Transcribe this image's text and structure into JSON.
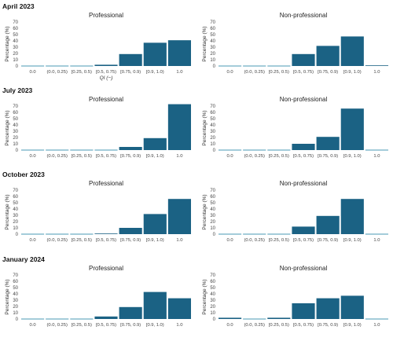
{
  "colors": {
    "bar": "#1b6284",
    "zero_line": "#4a9ab5",
    "axis_text": "#444444",
    "grid": "#ececec"
  },
  "chart_data": {
    "type": "bar",
    "categories": [
      "0.0",
      "(0.0, 0.25)",
      "[0.25, 0.5)",
      "[0.5, 0.75)",
      "[0.75, 0.9)",
      "[0.9, 1.0)",
      "1.0"
    ],
    "xlabel": "QI (−)",
    "ylabel": "Percentage (%)",
    "ylim": [
      0,
      70
    ],
    "yticks": [
      0,
      10,
      20,
      30,
      40,
      50,
      60,
      70
    ],
    "grid": false,
    "rows": [
      {
        "period": "April 2023",
        "panels": [
          {
            "title": "Professional",
            "values": [
              0,
              0,
              0,
              2,
              19,
              37,
              41
            ]
          },
          {
            "title": "Non-professional",
            "values": [
              0,
              0,
              0,
              19,
              32,
              47,
              1
            ]
          }
        ]
      },
      {
        "period": "July 2023",
        "panels": [
          {
            "title": "Professional",
            "values": [
              0,
              0,
              0,
              0,
              5,
              19,
              73
            ]
          },
          {
            "title": "Non-professional",
            "values": [
              0,
              0,
              0,
              10,
              21,
              66,
              0
            ]
          }
        ]
      },
      {
        "period": "October 2023",
        "panels": [
          {
            "title": "Professional",
            "values": [
              0,
              0,
              0,
              1,
              10,
              32,
              56
            ]
          },
          {
            "title": "Non-professional",
            "values": [
              0,
              0,
              0,
              12,
              29,
              56,
              0
            ]
          }
        ]
      },
      {
        "period": "January 2024",
        "panels": [
          {
            "title": "Professional",
            "values": [
              0,
              0,
              0,
              4,
              19,
              43,
              33
            ]
          },
          {
            "title": "Non-professional",
            "values": [
              2,
              0,
              2,
              25,
              33,
              37,
              0
            ]
          }
        ]
      }
    ]
  }
}
